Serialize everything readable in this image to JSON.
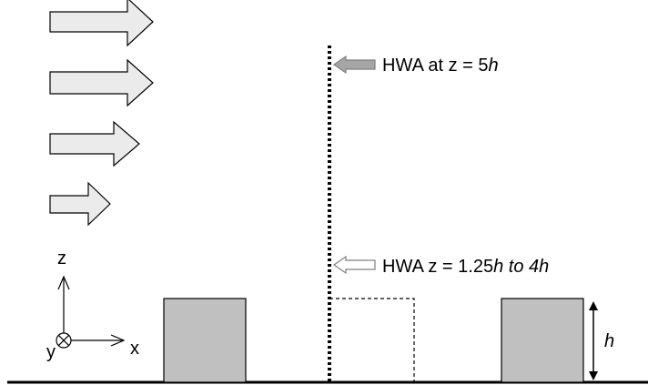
{
  "labels": {
    "hwa_top": {
      "prefix": "HWA at z = 5",
      "h": "h"
    },
    "hwa_range": {
      "prefix": "HWA z = 1.25",
      "h1": "h",
      "mid": " to 4",
      "h2": "h"
    },
    "height": "h",
    "axis_z": "z",
    "axis_x": "x",
    "axis_y": "y"
  },
  "colors": {
    "block_fill": "#c0c0c0",
    "arrow_fill": "#ebebeb",
    "probe_arrow_fill": "#a6a6a6",
    "stroke": "#000000",
    "probe_arrow_stroke": "#808080"
  }
}
